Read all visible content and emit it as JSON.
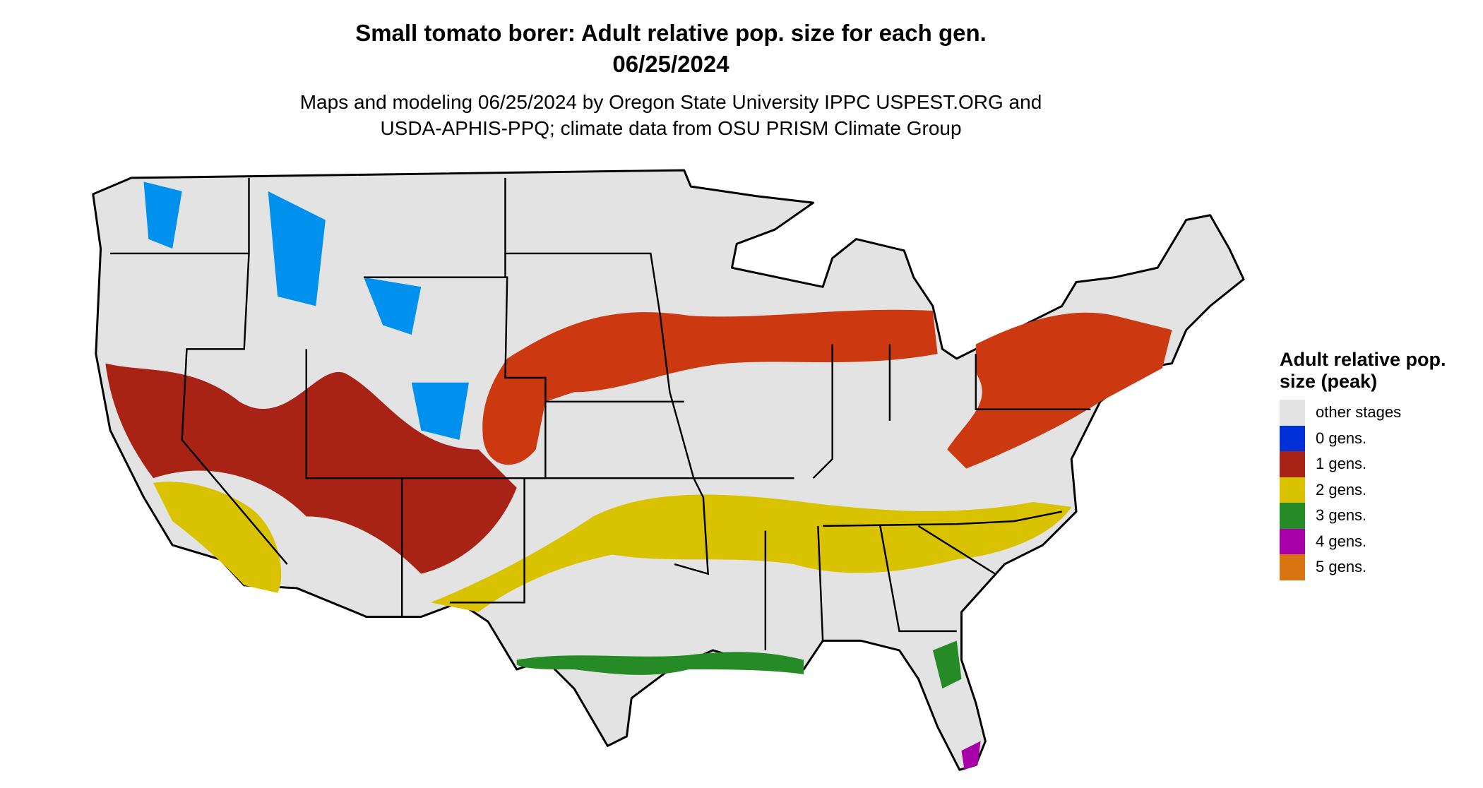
{
  "chart_data": {
    "type": "map",
    "title": "Small tomato borer: Adult relative pop. size for each gen.",
    "date": "06/25/2024",
    "subtitle_lines": [
      "Maps and modeling 06/25/2024 by Oregon State University IPPC USPEST.ORG and",
      "USDA-APHIS-PPQ; climate data from OSU PRISM Climate Group"
    ],
    "region": "Contiguous United States",
    "legend": {
      "title": "Adult relative pop. size (peak)",
      "placement": "right",
      "entries": [
        {
          "label": "other stages",
          "color": "#e3e3e3"
        },
        {
          "label": "0 gens.",
          "color": "#0030d8"
        },
        {
          "label": "1 gens.",
          "color": "#a82315"
        },
        {
          "label": "2 gens.",
          "color": "#d9c200"
        },
        {
          "label": "3 gens.",
          "color": "#268a26"
        },
        {
          "label": "4 gens.",
          "color": "#a800a8"
        },
        {
          "label": "5 gens.",
          "color": "#d97413"
        }
      ]
    }
  }
}
